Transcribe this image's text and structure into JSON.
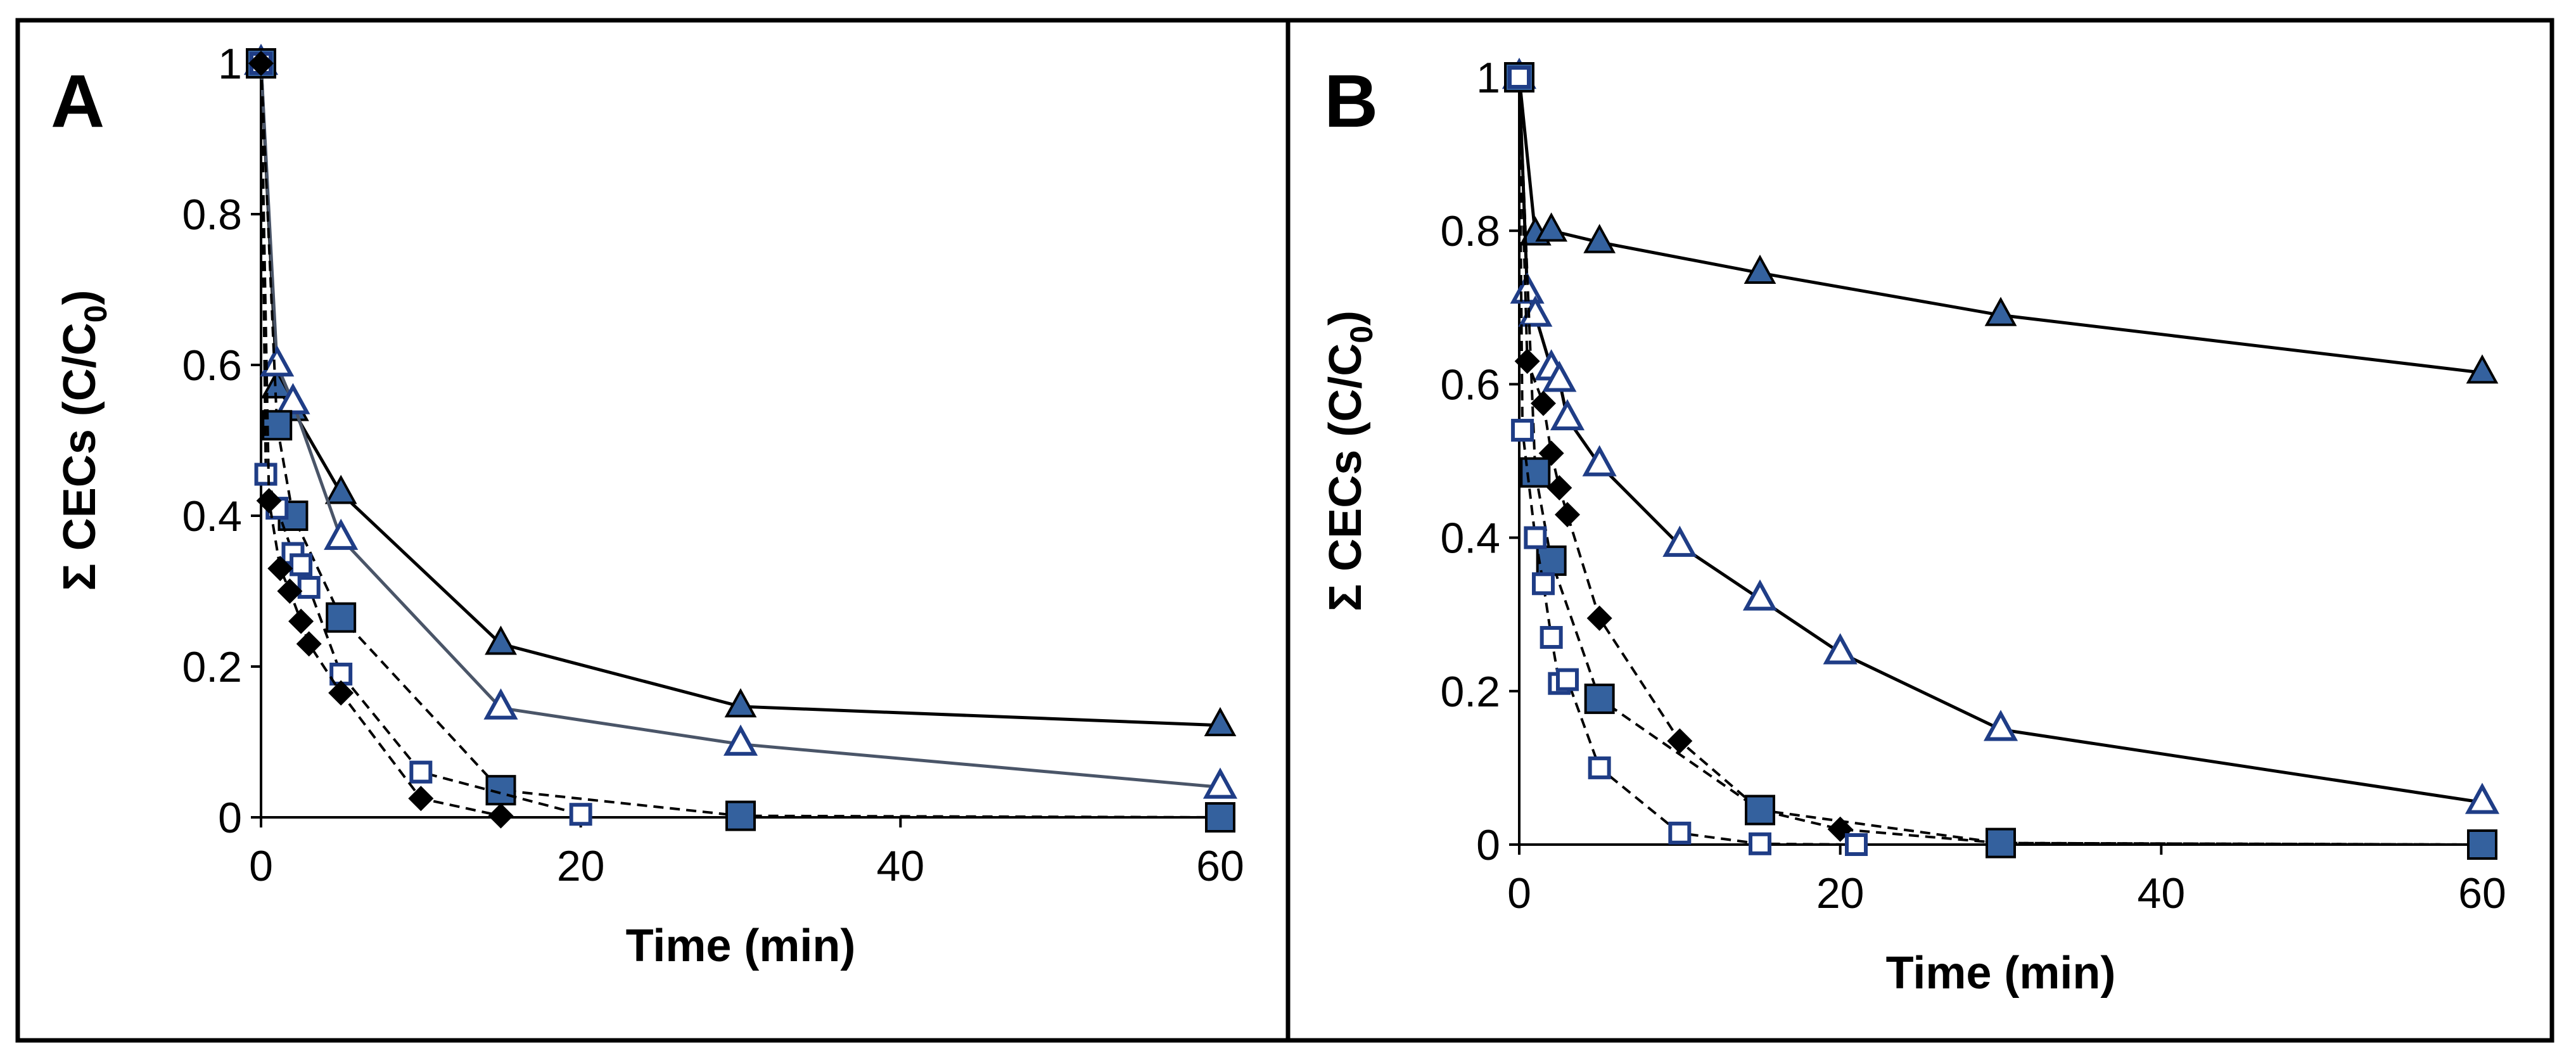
{
  "colors": {
    "series_blue": "#34619E",
    "open_blue": "#1F3D86",
    "diamond": "#000000",
    "frame": "#000000",
    "line_dark": "#000000",
    "line_slate": "#4A5568"
  },
  "chart_data": [
    {
      "panel": "A",
      "type": "line",
      "xlabel": "Time (min)",
      "ylabel_prefix": "Σ CECs (C/C",
      "ylabel_sub": "0",
      "ylabel_suffix": ")",
      "xlim": [
        0,
        60
      ],
      "ylim": [
        0,
        1
      ],
      "xticks": [
        0,
        20,
        40,
        60
      ],
      "yticks": [
        0,
        0.2,
        0.4,
        0.6,
        0.8,
        1
      ],
      "ytick_labels": [
        "0",
        "0.2",
        "0.4",
        "0.6",
        "0.8",
        "1"
      ],
      "xtick_labels": [
        "0",
        "20",
        "40",
        "60"
      ],
      "series": [
        {
          "name": "filled-triangle",
          "marker": "triangle-filled",
          "line": "solid",
          "line_color": "#000000",
          "x": [
            0,
            1,
            2,
            5,
            15,
            30,
            60
          ],
          "y": [
            1,
            0.57,
            0.54,
            0.43,
            0.23,
            0.147,
            0.122
          ]
        },
        {
          "name": "open-triangle",
          "marker": "triangle-open",
          "line": "solid",
          "line_color": "#4A5568",
          "x": [
            0,
            1,
            2,
            5,
            15,
            30,
            60
          ],
          "y": [
            1,
            0.6,
            0.55,
            0.37,
            0.145,
            0.097,
            0.04
          ]
        },
        {
          "name": "filled-square",
          "marker": "square-filled",
          "line": "dashed",
          "line_color": "#000000",
          "x": [
            0,
            1,
            2,
            5,
            15,
            30,
            60
          ],
          "y": [
            1,
            0.52,
            0.4,
            0.265,
            0.036,
            0.002,
            0
          ]
        },
        {
          "name": "open-square",
          "marker": "square-open",
          "line": "dashed",
          "line_color": "#000000",
          "x": [
            0,
            0.3,
            1,
            2,
            2.5,
            3,
            5,
            10,
            20
          ],
          "y": [
            1,
            0.455,
            0.41,
            0.35,
            0.335,
            0.305,
            0.19,
            0.06,
            0.004
          ]
        },
        {
          "name": "diamond",
          "marker": "diamond",
          "line": "dashed",
          "line_color": "#000000",
          "x": [
            0,
            0.5,
            1.2,
            1.8,
            2.5,
            3,
            5,
            10,
            15
          ],
          "y": [
            1,
            0.42,
            0.33,
            0.3,
            0.26,
            0.23,
            0.165,
            0.025,
            0.002
          ]
        }
      ]
    },
    {
      "panel": "B",
      "type": "line",
      "xlabel": "Time (min)",
      "ylabel_prefix": "Σ CECs (C/C",
      "ylabel_sub": "0",
      "ylabel_suffix": ")",
      "xlim": [
        0,
        60
      ],
      "ylim": [
        0,
        1
      ],
      "xticks": [
        0,
        20,
        40,
        60
      ],
      "yticks": [
        0,
        0.2,
        0.4,
        0.6,
        0.8,
        1
      ],
      "ytick_labels": [
        "0",
        "0.2",
        "0.4",
        "0.6",
        "0.8",
        "1"
      ],
      "xtick_labels": [
        "0",
        "20",
        "40",
        "60"
      ],
      "series": [
        {
          "name": "filled-triangle",
          "marker": "triangle-filled",
          "line": "solid",
          "line_color": "#000000",
          "x": [
            0,
            1,
            2,
            5,
            15,
            30,
            60
          ],
          "y": [
            1,
            0.795,
            0.8,
            0.785,
            0.745,
            0.69,
            0.615
          ]
        },
        {
          "name": "open-triangle",
          "marker": "triangle-open",
          "line": "solid",
          "line_color": "#000000",
          "x": [
            0,
            0.5,
            1,
            2,
            2.5,
            3,
            5,
            10,
            15,
            20,
            30,
            60
          ],
          "y": [
            1,
            0.72,
            0.69,
            0.62,
            0.605,
            0.555,
            0.495,
            0.39,
            0.32,
            0.25,
            0.15,
            0.055
          ]
        },
        {
          "name": "diamond",
          "marker": "diamond",
          "line": "dashed",
          "line_color": "#000000",
          "x": [
            0,
            0.5,
            1.5,
            2,
            2.5,
            3,
            5,
            10,
            15,
            20,
            30,
            60
          ],
          "y": [
            1,
            0.63,
            0.575,
            0.51,
            0.465,
            0.43,
            0.295,
            0.135,
            0.045,
            0.02,
            0.002,
            0
          ]
        },
        {
          "name": "filled-square",
          "marker": "square-filled",
          "line": "dashed",
          "line_color": "#000000",
          "x": [
            0,
            1,
            2,
            5,
            15,
            30,
            60
          ],
          "y": [
            1,
            0.485,
            0.37,
            0.19,
            0.045,
            0.002,
            0
          ]
        },
        {
          "name": "open-square",
          "marker": "square-open",
          "line": "dashed",
          "line_color": "#000000",
          "x": [
            0,
            0.2,
            1,
            1.5,
            2,
            2.5,
            3,
            5,
            10,
            15,
            21
          ],
          "y": [
            1,
            0.54,
            0.4,
            0.34,
            0.27,
            0.21,
            0.215,
            0.1,
            0.015,
            0.001,
            0
          ]
        }
      ]
    }
  ]
}
